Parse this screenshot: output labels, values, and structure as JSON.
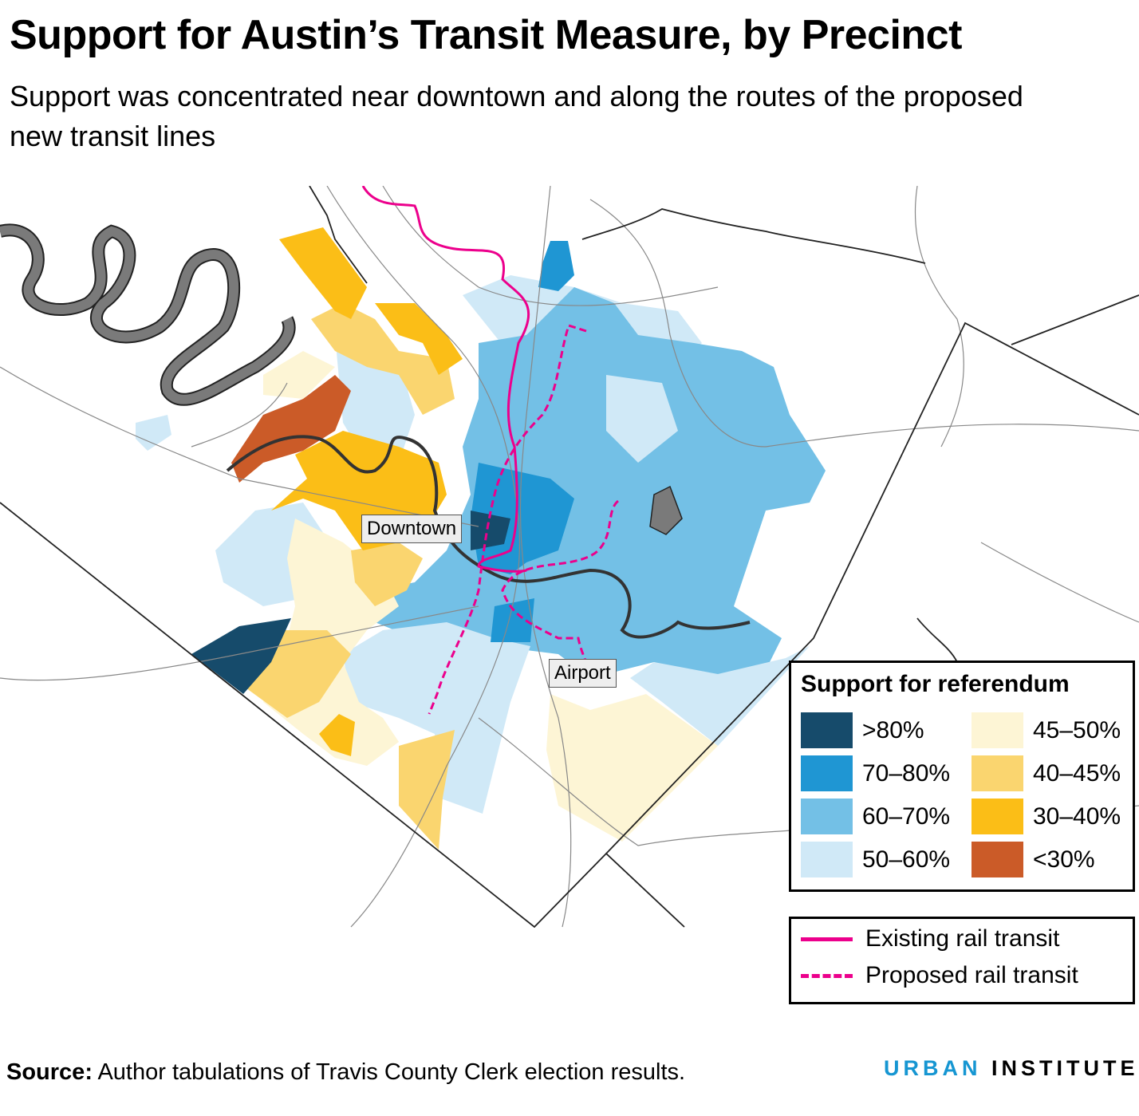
{
  "title": "Support for Austin’s Transit Measure, by Precinct",
  "subtitle": "Support was concentrated near downtown and along the routes of the proposed new transit lines",
  "map": {
    "labels": {
      "downtown": "Downtown",
      "airport": "Airport"
    },
    "colors": {
      "gt80": "#164b6b",
      "70_80": "#1f96d3",
      "60_70": "#73c0e6",
      "50_60": "#d0e9f7",
      "45_50": "#fdf5d5",
      "40_45": "#fad56f",
      "30_40": "#fbbe17",
      "lt30": "#cb5b28",
      "rail": "#ec008c",
      "water": "#777777"
    }
  },
  "legend": {
    "title": "Support for referendum",
    "items": [
      {
        "label": ">80%",
        "color": "#164b6b"
      },
      {
        "label": "70–80%",
        "color": "#1f96d3"
      },
      {
        "label": "60–70%",
        "color": "#73c0e6"
      },
      {
        "label": "50–60%",
        "color": "#d0e9f7"
      },
      {
        "label": "45–50%",
        "color": "#fdf5d5"
      },
      {
        "label": "40–45%",
        "color": "#fad56f"
      },
      {
        "label": "30–40%",
        "color": "#fbbe17"
      },
      {
        "label": "<30%",
        "color": "#cb5b28"
      }
    ],
    "lines": [
      {
        "label": "Existing rail transit",
        "style": "solid"
      },
      {
        "label": "Proposed rail transit",
        "style": "dashed"
      }
    ]
  },
  "source": {
    "label": "Source:",
    "text": " Author tabulations of Travis County Clerk election results."
  },
  "logo": {
    "part1": "URBAN",
    "part2": "INSTITUTE",
    "color1": "#1696d2",
    "color2": "#000000"
  }
}
